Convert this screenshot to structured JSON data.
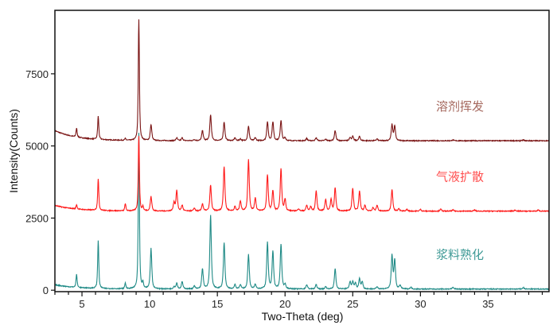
{
  "chart_data": {
    "type": "line",
    "title": "",
    "xlabel": "Two-Theta (deg)",
    "ylabel": "Intensity(Counts)",
    "xlim": [
      3,
      39.5
    ],
    "ylim": [
      -50,
      9700
    ],
    "xticks": [
      5,
      10,
      15,
      20,
      25,
      30,
      35
    ],
    "yticks": [
      0,
      2500,
      5000,
      7500
    ],
    "grid": false,
    "legend": "inline labels right of each trace",
    "series": [
      {
        "name": "溶剂挥发",
        "color": "#7a1414",
        "label_color": "#a5685e",
        "baseline": 5180,
        "low_angle_rise": 350,
        "peaks": [
          [
            4.6,
            300
          ],
          [
            6.2,
            800
          ],
          [
            8.2,
            60
          ],
          [
            9.2,
            4200
          ],
          [
            10.1,
            550
          ],
          [
            12.0,
            100
          ],
          [
            12.4,
            100
          ],
          [
            13.3,
            40
          ],
          [
            13.9,
            350
          ],
          [
            14.5,
            900
          ],
          [
            15.5,
            650
          ],
          [
            16.3,
            100
          ],
          [
            16.7,
            60
          ],
          [
            17.3,
            500
          ],
          [
            17.8,
            100
          ],
          [
            18.7,
            650
          ],
          [
            19.1,
            650
          ],
          [
            19.7,
            700
          ],
          [
            20.0,
            100
          ],
          [
            21.6,
            80
          ],
          [
            22.3,
            100
          ],
          [
            23.0,
            50
          ],
          [
            23.7,
            350
          ],
          [
            24.8,
            120
          ],
          [
            25.0,
            150
          ],
          [
            25.5,
            150
          ],
          [
            26.8,
            60
          ],
          [
            27.9,
            550
          ],
          [
            28.1,
            500
          ],
          [
            32.4,
            30
          ],
          [
            37.6,
            30
          ]
        ]
      },
      {
        "name": "气液扩散",
        "color": "#ff1a1a",
        "label_color": "#ff5050",
        "baseline": 2740,
        "low_angle_rise": 200,
        "peaks": [
          [
            4.6,
            150
          ],
          [
            6.2,
            1100
          ],
          [
            8.2,
            250
          ],
          [
            9.2,
            2600
          ],
          [
            9.5,
            150
          ],
          [
            10.1,
            500
          ],
          [
            11.8,
            300
          ],
          [
            12.0,
            700
          ],
          [
            12.4,
            200
          ],
          [
            13.3,
            100
          ],
          [
            13.9,
            250
          ],
          [
            14.5,
            900
          ],
          [
            15.5,
            1550
          ],
          [
            16.3,
            150
          ],
          [
            16.7,
            350
          ],
          [
            17.3,
            1800
          ],
          [
            17.8,
            450
          ],
          [
            18.7,
            1250
          ],
          [
            19.1,
            700
          ],
          [
            19.7,
            1450
          ],
          [
            20.0,
            400
          ],
          [
            21.0,
            80
          ],
          [
            21.6,
            200
          ],
          [
            21.9,
            150
          ],
          [
            22.3,
            700
          ],
          [
            23.0,
            400
          ],
          [
            23.4,
            400
          ],
          [
            23.7,
            800
          ],
          [
            25.0,
            800
          ],
          [
            25.5,
            700
          ],
          [
            25.9,
            200
          ],
          [
            26.5,
            120
          ],
          [
            26.8,
            200
          ],
          [
            27.9,
            750
          ],
          [
            28.4,
            80
          ],
          [
            29.0,
            60
          ],
          [
            30.0,
            60
          ],
          [
            31.5,
            70
          ],
          [
            32.4,
            40
          ],
          [
            34.0,
            40
          ],
          [
            37.0,
            40
          ],
          [
            38.7,
            40
          ]
        ]
      },
      {
        "name": "浆料熟化",
        "color": "#1f8a86",
        "label_color": "#3f9a96",
        "baseline": 40,
        "low_angle_rise": 150,
        "peaks": [
          [
            4.6,
            450
          ],
          [
            6.2,
            1650
          ],
          [
            8.2,
            200
          ],
          [
            9.2,
            5400
          ],
          [
            9.5,
            200
          ],
          [
            10.1,
            1400
          ],
          [
            11.8,
            80
          ],
          [
            12.0,
            200
          ],
          [
            12.4,
            250
          ],
          [
            13.3,
            100
          ],
          [
            13.9,
            700
          ],
          [
            14.5,
            2550
          ],
          [
            15.5,
            1600
          ],
          [
            16.3,
            150
          ],
          [
            16.7,
            150
          ],
          [
            17.3,
            1200
          ],
          [
            17.8,
            150
          ],
          [
            18.7,
            1600
          ],
          [
            19.1,
            1300
          ],
          [
            19.7,
            1550
          ],
          [
            20.0,
            150
          ],
          [
            21.6,
            150
          ],
          [
            22.3,
            150
          ],
          [
            23.0,
            80
          ],
          [
            23.7,
            700
          ],
          [
            24.8,
            250
          ],
          [
            25.0,
            250
          ],
          [
            25.2,
            200
          ],
          [
            25.5,
            350
          ],
          [
            25.7,
            250
          ],
          [
            26.8,
            80
          ],
          [
            27.9,
            1150
          ],
          [
            28.1,
            1000
          ],
          [
            28.5,
            120
          ],
          [
            29.3,
            60
          ],
          [
            32.4,
            60
          ],
          [
            37.6,
            50
          ]
        ]
      }
    ]
  }
}
